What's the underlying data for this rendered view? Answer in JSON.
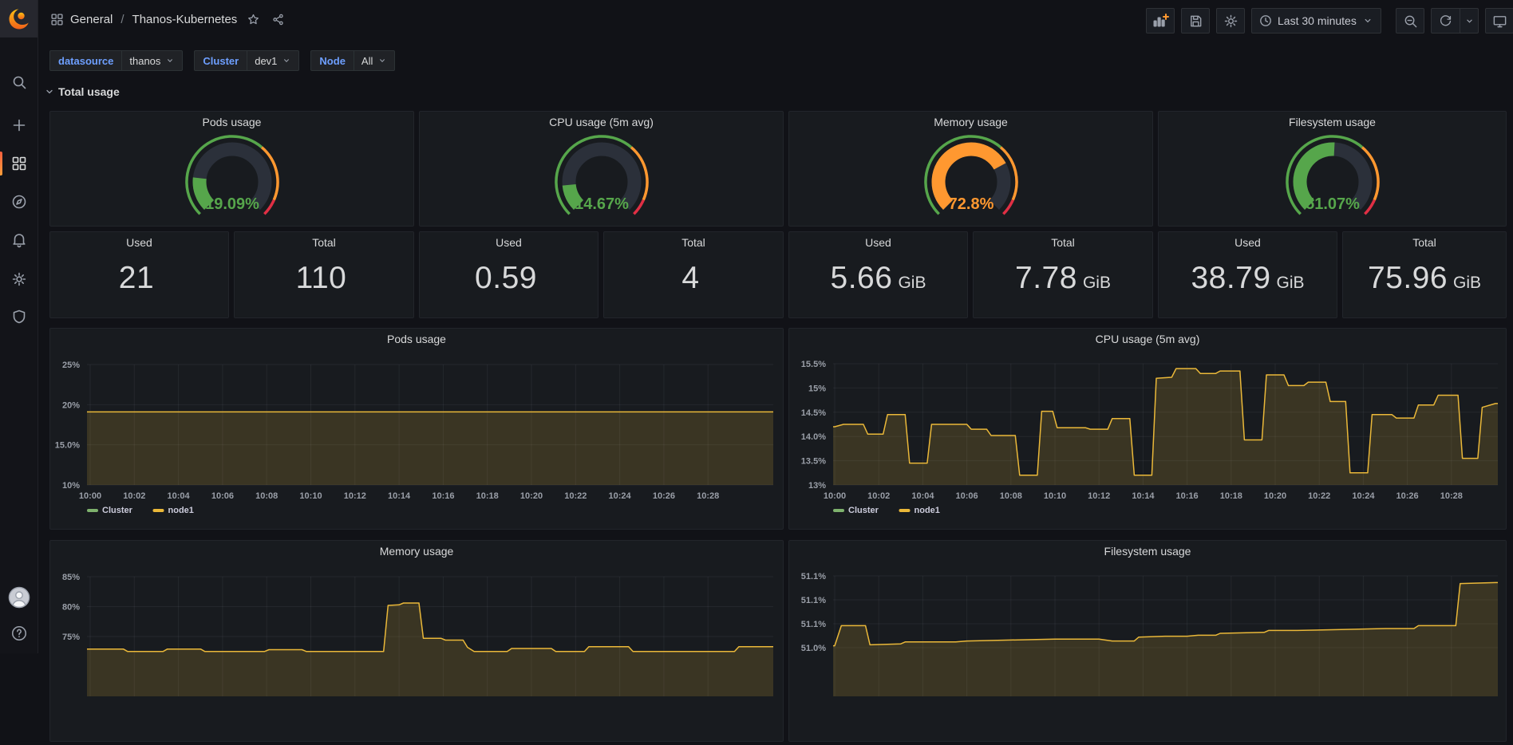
{
  "nav": {
    "breadcrumb_section": "General",
    "breadcrumb_separator": "/",
    "breadcrumb_page": "Thanos-Kubernetes",
    "time_range": "Last 30 minutes"
  },
  "icons": {
    "sidebar": [
      "grafana-logo",
      "search",
      "plus",
      "dashboards",
      "explore",
      "alerting",
      "settings",
      "shield",
      "avatar",
      "help"
    ],
    "topbar": [
      "apps-grid",
      "star",
      "share",
      "add-panel",
      "save",
      "settings-gear",
      "clock",
      "chevron-down",
      "zoom-out",
      "refresh",
      "chevron-down",
      "monitor"
    ]
  },
  "variables": [
    {
      "label": "datasource",
      "value": "thanos"
    },
    {
      "label": "Cluster",
      "value": "dev1"
    },
    {
      "label": "Node",
      "value": "All"
    }
  ],
  "row": {
    "title": "Total usage"
  },
  "gauges": [
    {
      "title": "Pods usage",
      "display": "19.09%",
      "pct": 19.09,
      "color": "#56A64B"
    },
    {
      "title": "CPU usage (5m avg)",
      "display": "14.67%",
      "pct": 14.67,
      "color": "#56A64B"
    },
    {
      "title": "Memory usage",
      "display": "72.8%",
      "pct": 72.8,
      "color": "#FF9830"
    },
    {
      "title": "Filesystem usage",
      "display": "51.07%",
      "pct": 51.07,
      "color": "#56A64B"
    }
  ],
  "stats": [
    {
      "title": "Used",
      "value": "21",
      "unit": ""
    },
    {
      "title": "Total",
      "value": "110",
      "unit": ""
    },
    {
      "title": "Used",
      "value": "0.59",
      "unit": ""
    },
    {
      "title": "Total",
      "value": "4",
      "unit": ""
    },
    {
      "title": "Used",
      "value": "5.66",
      "unit": "GiB"
    },
    {
      "title": "Total",
      "value": "7.78",
      "unit": "GiB"
    },
    {
      "title": "Used",
      "value": "38.79",
      "unit": "GiB"
    },
    {
      "title": "Total",
      "value": "75.96",
      "unit": "GiB"
    }
  ],
  "colors": {
    "green": "#56A64B",
    "orange": "#FF9830",
    "red": "#E02F44",
    "series_yellow": "#EAB839",
    "series_green": "#7EB26D",
    "blue": "#5794F2",
    "grid": "rgba(204,204,220,0.07)",
    "axis_text": "#9a9fa8",
    "gauge_track": "#2b303a",
    "panel_bg": "#181b1f",
    "page_bg": "#111217"
  },
  "chart_data": [
    {
      "type": "area",
      "title": "Pods usage",
      "x_ticks": [
        "10:00",
        "10:02",
        "10:04",
        "10:06",
        "10:08",
        "10:10",
        "10:12",
        "10:14",
        "10:16",
        "10:18",
        "10:20",
        "10:22",
        "10:24",
        "10:26",
        "10:28"
      ],
      "y_ticks": [
        {
          "label": "25%",
          "v": 25
        },
        {
          "label": "20%",
          "v": 20
        },
        {
          "label": "15.0%",
          "v": 15
        },
        {
          "label": "10%",
          "v": 10
        }
      ],
      "ylim": [
        10,
        25
      ],
      "legend": [
        {
          "label": "Cluster",
          "color": "#7EB26D"
        },
        {
          "label": "node1",
          "color": "#EAB839"
        }
      ],
      "series": [
        {
          "name": "node1",
          "color": "#EAB839",
          "fill_opacity": 0.17,
          "points": [
            [
              0,
              19.1
            ],
            [
              30,
              19.1
            ]
          ]
        }
      ]
    },
    {
      "type": "area",
      "title": "CPU usage (5m avg)",
      "x_ticks": [
        "10:00",
        "10:02",
        "10:04",
        "10:06",
        "10:08",
        "10:10",
        "10:12",
        "10:14",
        "10:16",
        "10:18",
        "10:20",
        "10:22",
        "10:24",
        "10:26",
        "10:28"
      ],
      "y_ticks": [
        {
          "label": "15.5%",
          "v": 15.5
        },
        {
          "label": "15%",
          "v": 15
        },
        {
          "label": "14.5%",
          "v": 14.5
        },
        {
          "label": "14.0%",
          "v": 14
        },
        {
          "label": "13.5%",
          "v": 13.5
        },
        {
          "label": "13%",
          "v": 13
        }
      ],
      "ylim": [
        13,
        15.5
      ],
      "legend": [
        {
          "label": "Cluster",
          "color": "#7EB26D"
        },
        {
          "label": "node1",
          "color": "#EAB839"
        }
      ],
      "series": [
        {
          "name": "node1",
          "color": "#EAB839",
          "fill_opacity": 0.17,
          "points": [
            [
              0,
              14.2
            ],
            [
              0.4,
              14.25
            ],
            [
              1.3,
              14.25
            ],
            [
              1.5,
              14.05
            ],
            [
              2.2,
              14.05
            ],
            [
              2.4,
              14.45
            ],
            [
              3.2,
              14.45
            ],
            [
              3.4,
              13.45
            ],
            [
              4.2,
              13.45
            ],
            [
              4.4,
              14.25
            ],
            [
              6,
              14.25
            ],
            [
              6.2,
              14.15
            ],
            [
              6.9,
              14.15
            ],
            [
              7.1,
              14.02
            ],
            [
              8.2,
              14.02
            ],
            [
              8.4,
              13.2
            ],
            [
              9.2,
              13.2
            ],
            [
              9.4,
              14.52
            ],
            [
              9.9,
              14.52
            ],
            [
              10.1,
              14.18
            ],
            [
              11.4,
              14.18
            ],
            [
              11.6,
              14.15
            ],
            [
              12.4,
              14.15
            ],
            [
              12.6,
              14.37
            ],
            [
              13.4,
              14.37
            ],
            [
              13.6,
              13.2
            ],
            [
              14.4,
              13.2
            ],
            [
              14.6,
              15.2
            ],
            [
              15.3,
              15.22
            ],
            [
              15.5,
              15.4
            ],
            [
              16.4,
              15.4
            ],
            [
              16.6,
              15.3
            ],
            [
              17.3,
              15.3
            ],
            [
              17.5,
              15.35
            ],
            [
              18.4,
              15.35
            ],
            [
              18.6,
              13.93
            ],
            [
              19.4,
              13.93
            ],
            [
              19.6,
              15.27
            ],
            [
              20.4,
              15.27
            ],
            [
              20.6,
              15.05
            ],
            [
              21.3,
              15.05
            ],
            [
              21.5,
              15.12
            ],
            [
              22.3,
              15.12
            ],
            [
              22.5,
              14.72
            ],
            [
              23.2,
              14.72
            ],
            [
              23.4,
              13.25
            ],
            [
              24.2,
              13.25
            ],
            [
              24.4,
              14.45
            ],
            [
              25.3,
              14.45
            ],
            [
              25.5,
              14.38
            ],
            [
              26.3,
              14.38
            ],
            [
              26.5,
              14.65
            ],
            [
              27.2,
              14.65
            ],
            [
              27.4,
              14.85
            ],
            [
              28.3,
              14.85
            ],
            [
              28.5,
              13.55
            ],
            [
              29.2,
              13.55
            ],
            [
              29.4,
              14.6
            ],
            [
              30,
              14.68
            ]
          ]
        }
      ]
    },
    {
      "type": "area",
      "title": "Memory usage",
      "x_ticks": [
        "10:00",
        "10:02",
        "10:04",
        "10:06",
        "10:08",
        "10:10",
        "10:12",
        "10:14",
        "10:16",
        "10:18",
        "10:20",
        "10:22",
        "10:24",
        "10:26",
        "10:28"
      ],
      "y_ticks": [
        {
          "label": "85%",
          "v": 85
        },
        {
          "label": "80%",
          "v": 80
        },
        {
          "label": "75%",
          "v": 75
        }
      ],
      "ylim": [
        72,
        86
      ],
      "series": [
        {
          "name": "node1",
          "color": "#EAB839",
          "fill_opacity": 0.17,
          "points": [
            [
              0,
              72.9
            ],
            [
              1.5,
              72.9
            ],
            [
              1.7,
              72.5
            ],
            [
              3.3,
              72.5
            ],
            [
              3.5,
              72.9
            ],
            [
              5,
              72.9
            ],
            [
              5.2,
              72.5
            ],
            [
              7.9,
              72.5
            ],
            [
              8.1,
              72.8
            ],
            [
              9.6,
              72.8
            ],
            [
              9.8,
              72.5
            ],
            [
              13.3,
              72.5
            ],
            [
              13.5,
              80.2
            ],
            [
              14,
              80.3
            ],
            [
              14.2,
              80.6
            ],
            [
              14.9,
              80.6
            ],
            [
              15.1,
              74.7
            ],
            [
              15.9,
              74.7
            ],
            [
              16.1,
              74.4
            ],
            [
              16.9,
              74.4
            ],
            [
              17.1,
              73.2
            ],
            [
              17.4,
              72.5
            ],
            [
              18.9,
              72.5
            ],
            [
              19.1,
              73
            ],
            [
              20.9,
              73
            ],
            [
              21.1,
              72.5
            ],
            [
              22.4,
              72.5
            ],
            [
              22.6,
              73.3
            ],
            [
              24.4,
              73.3
            ],
            [
              24.6,
              72.5
            ],
            [
              29.2,
              72.5
            ],
            [
              29.4,
              73.3
            ],
            [
              30,
              73.3
            ]
          ]
        }
      ]
    },
    {
      "type": "area",
      "title": "Filesystem usage",
      "x_ticks": [
        "10:00",
        "10:02",
        "10:04",
        "10:06",
        "10:08",
        "10:10",
        "10:12",
        "10:14",
        "10:16",
        "10:18",
        "10:20",
        "10:22",
        "10:24",
        "10:26",
        "10:28"
      ],
      "y_ticks": [
        {
          "label": "51.1%",
          "v": 51.1
        },
        {
          "label": "51.1%",
          "v": 51.075
        },
        {
          "label": "51.1%",
          "v": 51.05
        },
        {
          "label": "51.0%",
          "v": 51.025
        }
      ],
      "ylim": [
        51.0,
        51.11
      ],
      "series": [
        {
          "name": "node1",
          "color": "#EAB839",
          "fill_opacity": 0.17,
          "points": [
            [
              0,
              51.027
            ],
            [
              0.3,
              51.048
            ],
            [
              1.4,
              51.048
            ],
            [
              1.6,
              51.028
            ],
            [
              3,
              51.029
            ],
            [
              3.2,
              51.031
            ],
            [
              5.5,
              51.031
            ],
            [
              6,
              51.032
            ],
            [
              8,
              51.033
            ],
            [
              10,
              51.034
            ],
            [
              12,
              51.034
            ],
            [
              12.6,
              51.032
            ],
            [
              13.6,
              51.032
            ],
            [
              13.8,
              51.036
            ],
            [
              15,
              51.037
            ],
            [
              16,
              51.037
            ],
            [
              16.5,
              51.038
            ],
            [
              17.3,
              51.038
            ],
            [
              17.5,
              51.04
            ],
            [
              19.5,
              51.041
            ],
            [
              19.7,
              51.043
            ],
            [
              21,
              51.043
            ],
            [
              23,
              51.044
            ],
            [
              25,
              51.045
            ],
            [
              26.3,
              51.045
            ],
            [
              26.5,
              51.048
            ],
            [
              28.2,
              51.048
            ],
            [
              28.4,
              51.092
            ],
            [
              30,
              51.093
            ]
          ]
        }
      ]
    }
  ]
}
